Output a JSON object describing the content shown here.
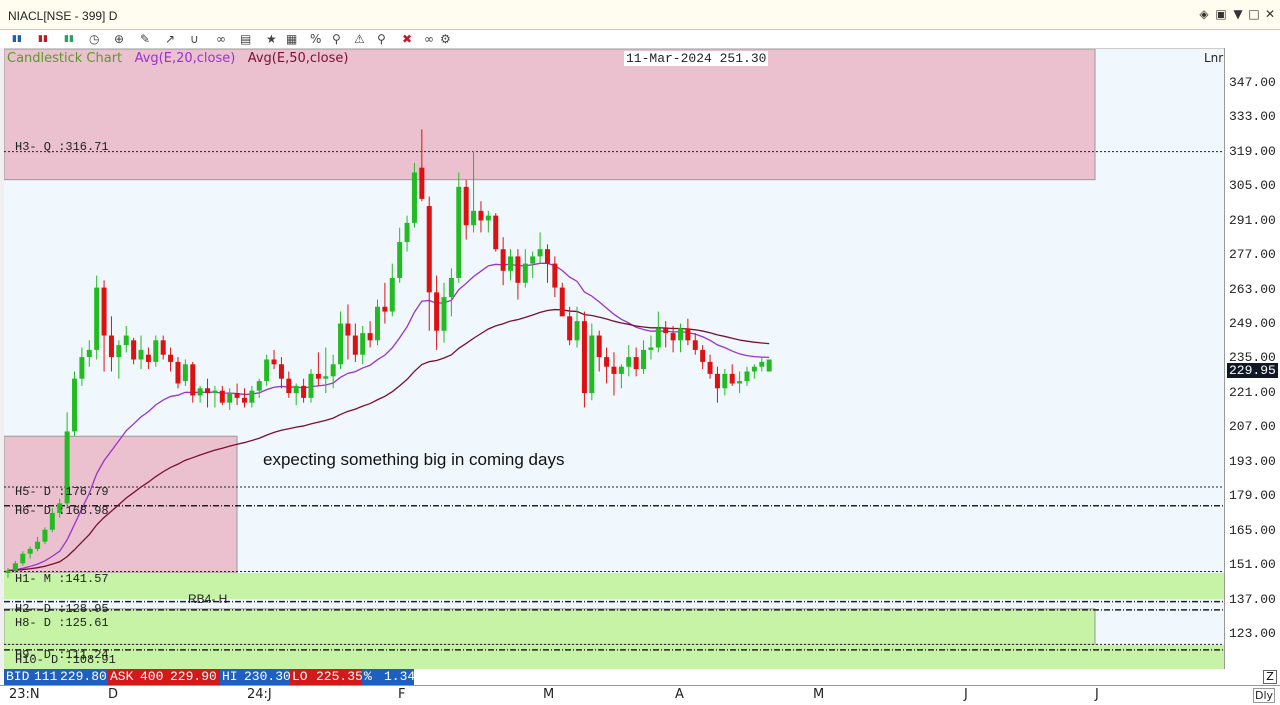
{
  "window": {
    "title": "NIACL[NSE - 399] D",
    "controls": [
      "restore-icon",
      "window-menu-icon",
      "minimize-icon",
      "maximize-icon",
      "close-icon"
    ]
  },
  "toolbar": {
    "icons": [
      "buy-icon",
      "sell-icon",
      "tsl-icon",
      "clock-icon",
      "crosshair-icon",
      "draw-icon",
      "line-tool-icon",
      "magnet-icon",
      "link-icon",
      "template-icon",
      "star-icon",
      "layout-icon",
      "percent-icon",
      "pin-icon",
      "alert-icon",
      "zoom-icon",
      "delete-icon",
      "text-size-icon",
      "indicator-icon",
      "settings-icon"
    ]
  },
  "chart": {
    "legend": {
      "main": "Candlestick Chart",
      "ema20": "Avg(E,20,close)",
      "ema50": "Avg(E,50,close)"
    },
    "info_box": "11-Mar-2024 251.30",
    "scale_mode": "Lnr",
    "y_labels": [
      "347.00",
      "333.00",
      "319.00",
      "305.00",
      "291.00",
      "277.00",
      "263.00",
      "249.00",
      "235.00",
      "221.00",
      "207.00",
      "193.00",
      "179.00",
      "165.00",
      "151.00",
      "137.00",
      "123.00"
    ],
    "last_price": "229.95",
    "levels": [
      "H3- Q :316.71",
      "H5- D :176.79",
      "H6- D :168.98",
      "H1- M :141.57",
      "RB4- H",
      "H2- D :128.95",
      "H8- D :125.61",
      "H9- D :111.24",
      "H10- D :108.91"
    ],
    "annotation": "expecting something big in coming days",
    "x_labels": [
      "23:N",
      "D",
      "24:J",
      "F",
      "M",
      "A",
      "M",
      "J",
      "J"
    ],
    "colors": {
      "up": "#22bb22",
      "down": "#dd1111",
      "ema20": "#9933cc",
      "ema50": "#7a1030",
      "supply_zone": "#ebc1cf",
      "demand_zone": "#c6f3a6"
    }
  },
  "quote_bar": {
    "bid_label": "BID",
    "bid_qty": "111",
    "bid": "229.80",
    "ask_label": "ASK",
    "ask_qty": "400",
    "ask": "229.90",
    "hi_label": "HI",
    "hi": "230.30",
    "lo_label": "LO",
    "lo": "225.35",
    "chg_label": "%",
    "chg": "1.34"
  },
  "footer": {
    "interval": "Dly"
  },
  "chart_data": {
    "type": "candlestick",
    "y_range": [
      103,
      357
    ],
    "candles": [
      [
        141,
        143,
        139,
        142
      ],
      [
        142,
        146,
        141,
        145
      ],
      [
        145,
        150,
        144,
        149
      ],
      [
        149,
        152,
        147,
        151
      ],
      [
        151,
        156,
        150,
        154
      ],
      [
        154,
        160,
        153,
        159
      ],
      [
        159,
        168,
        158,
        166
      ],
      [
        166,
        172,
        164,
        170
      ],
      [
        170,
        208,
        169,
        200
      ],
      [
        200,
        225,
        198,
        222
      ],
      [
        222,
        235,
        219,
        231
      ],
      [
        231,
        238,
        227,
        234
      ],
      [
        234,
        265,
        230,
        260
      ],
      [
        260,
        263,
        225,
        240
      ],
      [
        240,
        248,
        225,
        231
      ],
      [
        231,
        238,
        222,
        236
      ],
      [
        236,
        244,
        233,
        240
      ],
      [
        238,
        239,
        228,
        230
      ],
      [
        230,
        240,
        226,
        234
      ],
      [
        232,
        235,
        226,
        229
      ],
      [
        229,
        240,
        227,
        238
      ],
      [
        238,
        240,
        230,
        232
      ],
      [
        232,
        235,
        225,
        229
      ],
      [
        229,
        231,
        218,
        220
      ],
      [
        221,
        230,
        219,
        228
      ],
      [
        228,
        229,
        212,
        215
      ],
      [
        215,
        219,
        212,
        218
      ],
      [
        218,
        222,
        210,
        216
      ],
      [
        216,
        219,
        210,
        217
      ],
      [
        217,
        219,
        211,
        212
      ],
      [
        212,
        218,
        209,
        216
      ],
      [
        216,
        220,
        211,
        214
      ],
      [
        214,
        218,
        210,
        212
      ],
      [
        212,
        219,
        210,
        217
      ],
      [
        217,
        222,
        214,
        221
      ],
      [
        221,
        232,
        219,
        230
      ],
      [
        230,
        234,
        226,
        228
      ],
      [
        228,
        231,
        218,
        222
      ],
      [
        222,
        225,
        214,
        216
      ],
      [
        216,
        220,
        211,
        219
      ],
      [
        219,
        222,
        212,
        214
      ],
      [
        214,
        226,
        212,
        224
      ],
      [
        224,
        233,
        219,
        222
      ],
      [
        222,
        235,
        216,
        223
      ],
      [
        223,
        232,
        218,
        228
      ],
      [
        228,
        250,
        226,
        245
      ],
      [
        245,
        253,
        230,
        240
      ],
      [
        240,
        245,
        229,
        232
      ],
      [
        232,
        244,
        228,
        241
      ],
      [
        241,
        246,
        235,
        238
      ],
      [
        238,
        255,
        236,
        252
      ],
      [
        252,
        262,
        245,
        250
      ],
      [
        250,
        270,
        248,
        264
      ],
      [
        264,
        285,
        262,
        279
      ],
      [
        279,
        290,
        275,
        287
      ],
      [
        287,
        312,
        285,
        308
      ],
      [
        310,
        326,
        296,
        297
      ],
      [
        294,
        298,
        242,
        258
      ],
      [
        258,
        265,
        234,
        242
      ],
      [
        242,
        262,
        237,
        256
      ],
      [
        256,
        268,
        248,
        264
      ],
      [
        264,
        308,
        262,
        302
      ],
      [
        302,
        305,
        280,
        286
      ],
      [
        286,
        317,
        283,
        292
      ],
      [
        292,
        296,
        283,
        288
      ],
      [
        288,
        292,
        283,
        290
      ],
      [
        290,
        291,
        275,
        276
      ],
      [
        276,
        281,
        261,
        267
      ],
      [
        267,
        276,
        263,
        273
      ],
      [
        273,
        276,
        255,
        262
      ],
      [
        262,
        276,
        260,
        270
      ],
      [
        270,
        275,
        264,
        273
      ],
      [
        273,
        283,
        270,
        276
      ],
      [
        276,
        278,
        262,
        270
      ],
      [
        270,
        273,
        256,
        260
      ],
      [
        260,
        262,
        248,
        248
      ],
      [
        248,
        252,
        236,
        238
      ],
      [
        238,
        252,
        235,
        246
      ],
      [
        246,
        250,
        210,
        216
      ],
      [
        216,
        245,
        213,
        240
      ],
      [
        240,
        242,
        225,
        231
      ],
      [
        231,
        235,
        220,
        227
      ],
      [
        227,
        233,
        215,
        224
      ],
      [
        224,
        228,
        218,
        227
      ],
      [
        227,
        236,
        223,
        231
      ],
      [
        231,
        235,
        223,
        226
      ],
      [
        226,
        238,
        224,
        234
      ],
      [
        234,
        240,
        230,
        235
      ],
      [
        235,
        250,
        233,
        243
      ],
      [
        243,
        246,
        235,
        241
      ],
      [
        241,
        244,
        233,
        238
      ],
      [
        238,
        245,
        233,
        243
      ],
      [
        243,
        247,
        236,
        238
      ],
      [
        238,
        241,
        232,
        234
      ],
      [
        234,
        236,
        226,
        229
      ],
      [
        229,
        232,
        222,
        224
      ],
      [
        224,
        227,
        212,
        218
      ],
      [
        218,
        226,
        215,
        224
      ],
      [
        224,
        228,
        219,
        220
      ],
      [
        220,
        225,
        216,
        221
      ],
      [
        221,
        227,
        219,
        225
      ],
      [
        225,
        228,
        222,
        227
      ],
      [
        227,
        231,
        225,
        229
      ],
      [
        225,
        230,
        225,
        230
      ]
    ]
  }
}
